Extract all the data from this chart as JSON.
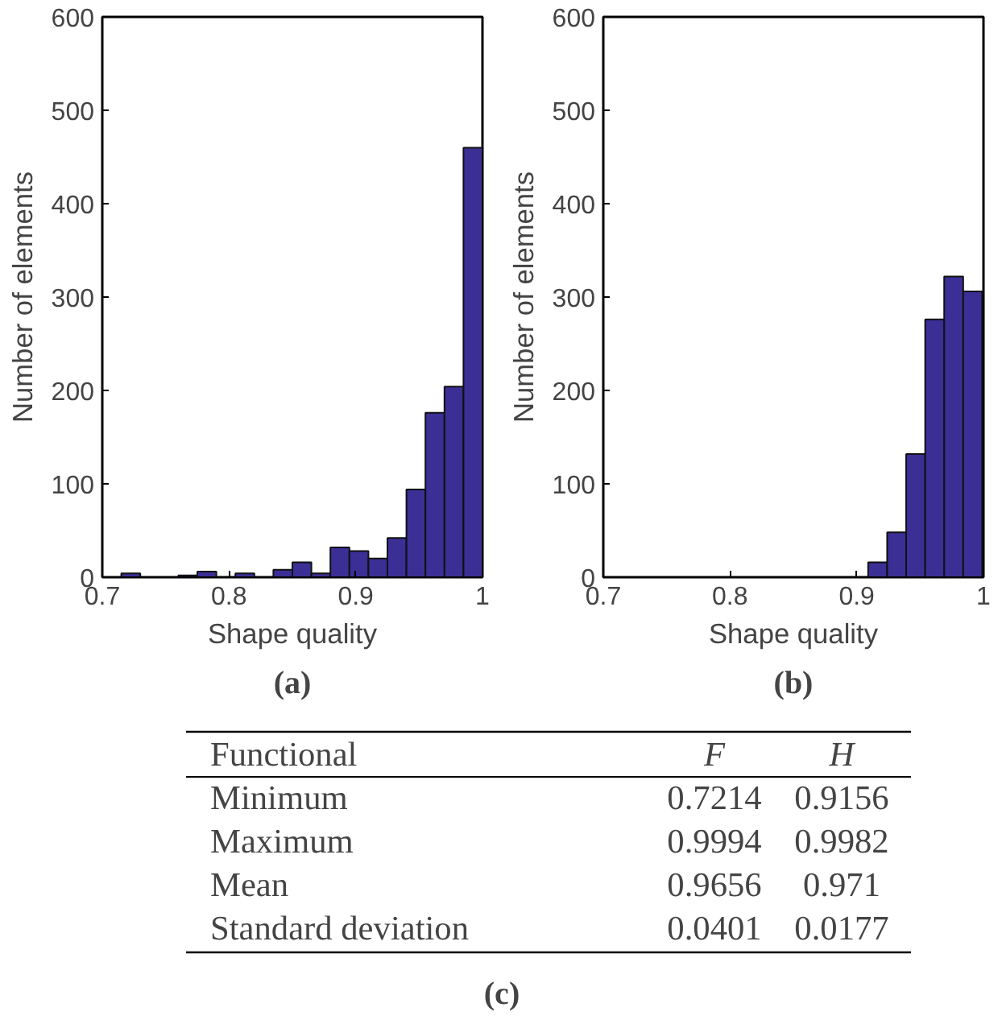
{
  "chart_data": [
    {
      "type": "histogram",
      "title": "(a)",
      "xlabel": "Shape quality",
      "ylabel": "Number of elements",
      "color": "#3b2f96",
      "bins": [
        0.715,
        0.73,
        0.745,
        0.76,
        0.775,
        0.79,
        0.805,
        0.82,
        0.835,
        0.85,
        0.865,
        0.88,
        0.895,
        0.91,
        0.925,
        0.94,
        0.955,
        0.97,
        0.985,
        1.0
      ],
      "values": [
        4,
        0,
        0,
        2,
        6,
        0,
        4,
        0,
        8,
        16,
        4,
        32,
        28,
        20,
        42,
        94,
        176,
        204,
        460
      ],
      "xlim": [
        0.7,
        1.0
      ],
      "xticks": [
        0.7,
        0.8,
        0.9,
        1
      ],
      "ylim": [
        0,
        600
      ],
      "yticks": [
        0,
        100,
        200,
        300,
        400,
        500,
        600
      ],
      "grid": false
    },
    {
      "type": "histogram",
      "title": "(b)",
      "xlabel": "Shape quality",
      "ylabel": "Number of elements",
      "color": "#3b2f96",
      "bins": [
        0.909,
        0.924,
        0.939,
        0.954,
        0.969,
        0.984,
        0.999
      ],
      "values": [
        16,
        48,
        132,
        276,
        322,
        306
      ],
      "xlim": [
        0.7,
        1.0
      ],
      "xticks": [
        0.7,
        0.8,
        0.9,
        1
      ],
      "ylim": [
        0,
        600
      ],
      "yticks": [
        0,
        100,
        200,
        300,
        400,
        500,
        600
      ],
      "grid": false
    },
    {
      "type": "other",
      "title": "(c)",
      "categories": [
        "Functional",
        "F",
        "H"
      ],
      "y_categories": [
        "Minimum",
        "Maximum",
        "Mean",
        "Standard deviation"
      ],
      "cell_labels": [
        [
          "0.7214",
          "0.9156"
        ],
        [
          "0.9994",
          "0.9982"
        ],
        [
          "0.9656",
          "0.971"
        ],
        [
          "0.0401",
          "0.0177"
        ]
      ]
    }
  ]
}
